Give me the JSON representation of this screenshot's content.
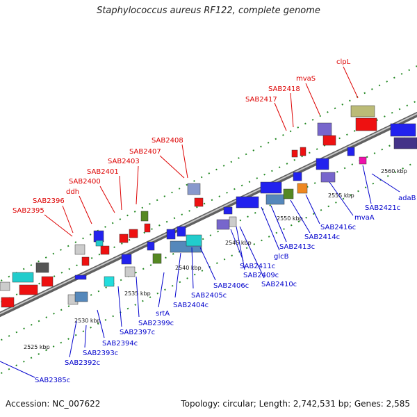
{
  "header": {
    "title": "Staphylococcus aureus RF122, complete genome"
  },
  "footer": {
    "accession": "Accession: NC_007622",
    "topology": "Topology: circular; Length: 2,742,531 bp; Genes: 2,585"
  },
  "scale_labels": [
    "2525 kbp",
    "2530 kbp",
    "2535 kbp",
    "2540 kbp",
    "2545 kbp",
    "2550 kbp",
    "2555 kbp",
    "2560 kbp"
  ],
  "colors": {
    "top_label": "#dd0000",
    "bottom_label": "#0000cc",
    "backbone": "#808080",
    "ticks": "#228822"
  },
  "top_labels": [
    "SAB2395",
    "SAB2396",
    "ddh",
    "SAB2400",
    "SAB2401",
    "SAB2403",
    "SAB2407",
    "SAB2408",
    "SAB2417",
    "SAB2418",
    "mvaS",
    "clpL"
  ],
  "bottom_labels": [
    "SAB2385c",
    "SAB2392c",
    "SAB2393c",
    "SAB2394c",
    "SAB2397c",
    "SAB2399c",
    "srtA",
    "SAB2404c",
    "SAB2405c",
    "SAB2406c",
    "SAB2411c",
    "SAB2409c",
    "SAB2410c",
    "glcB",
    "SAB2413c",
    "SAB2414c",
    "SAB2416c",
    "mvaA",
    "SAB2421c",
    "adaB"
  ]
}
